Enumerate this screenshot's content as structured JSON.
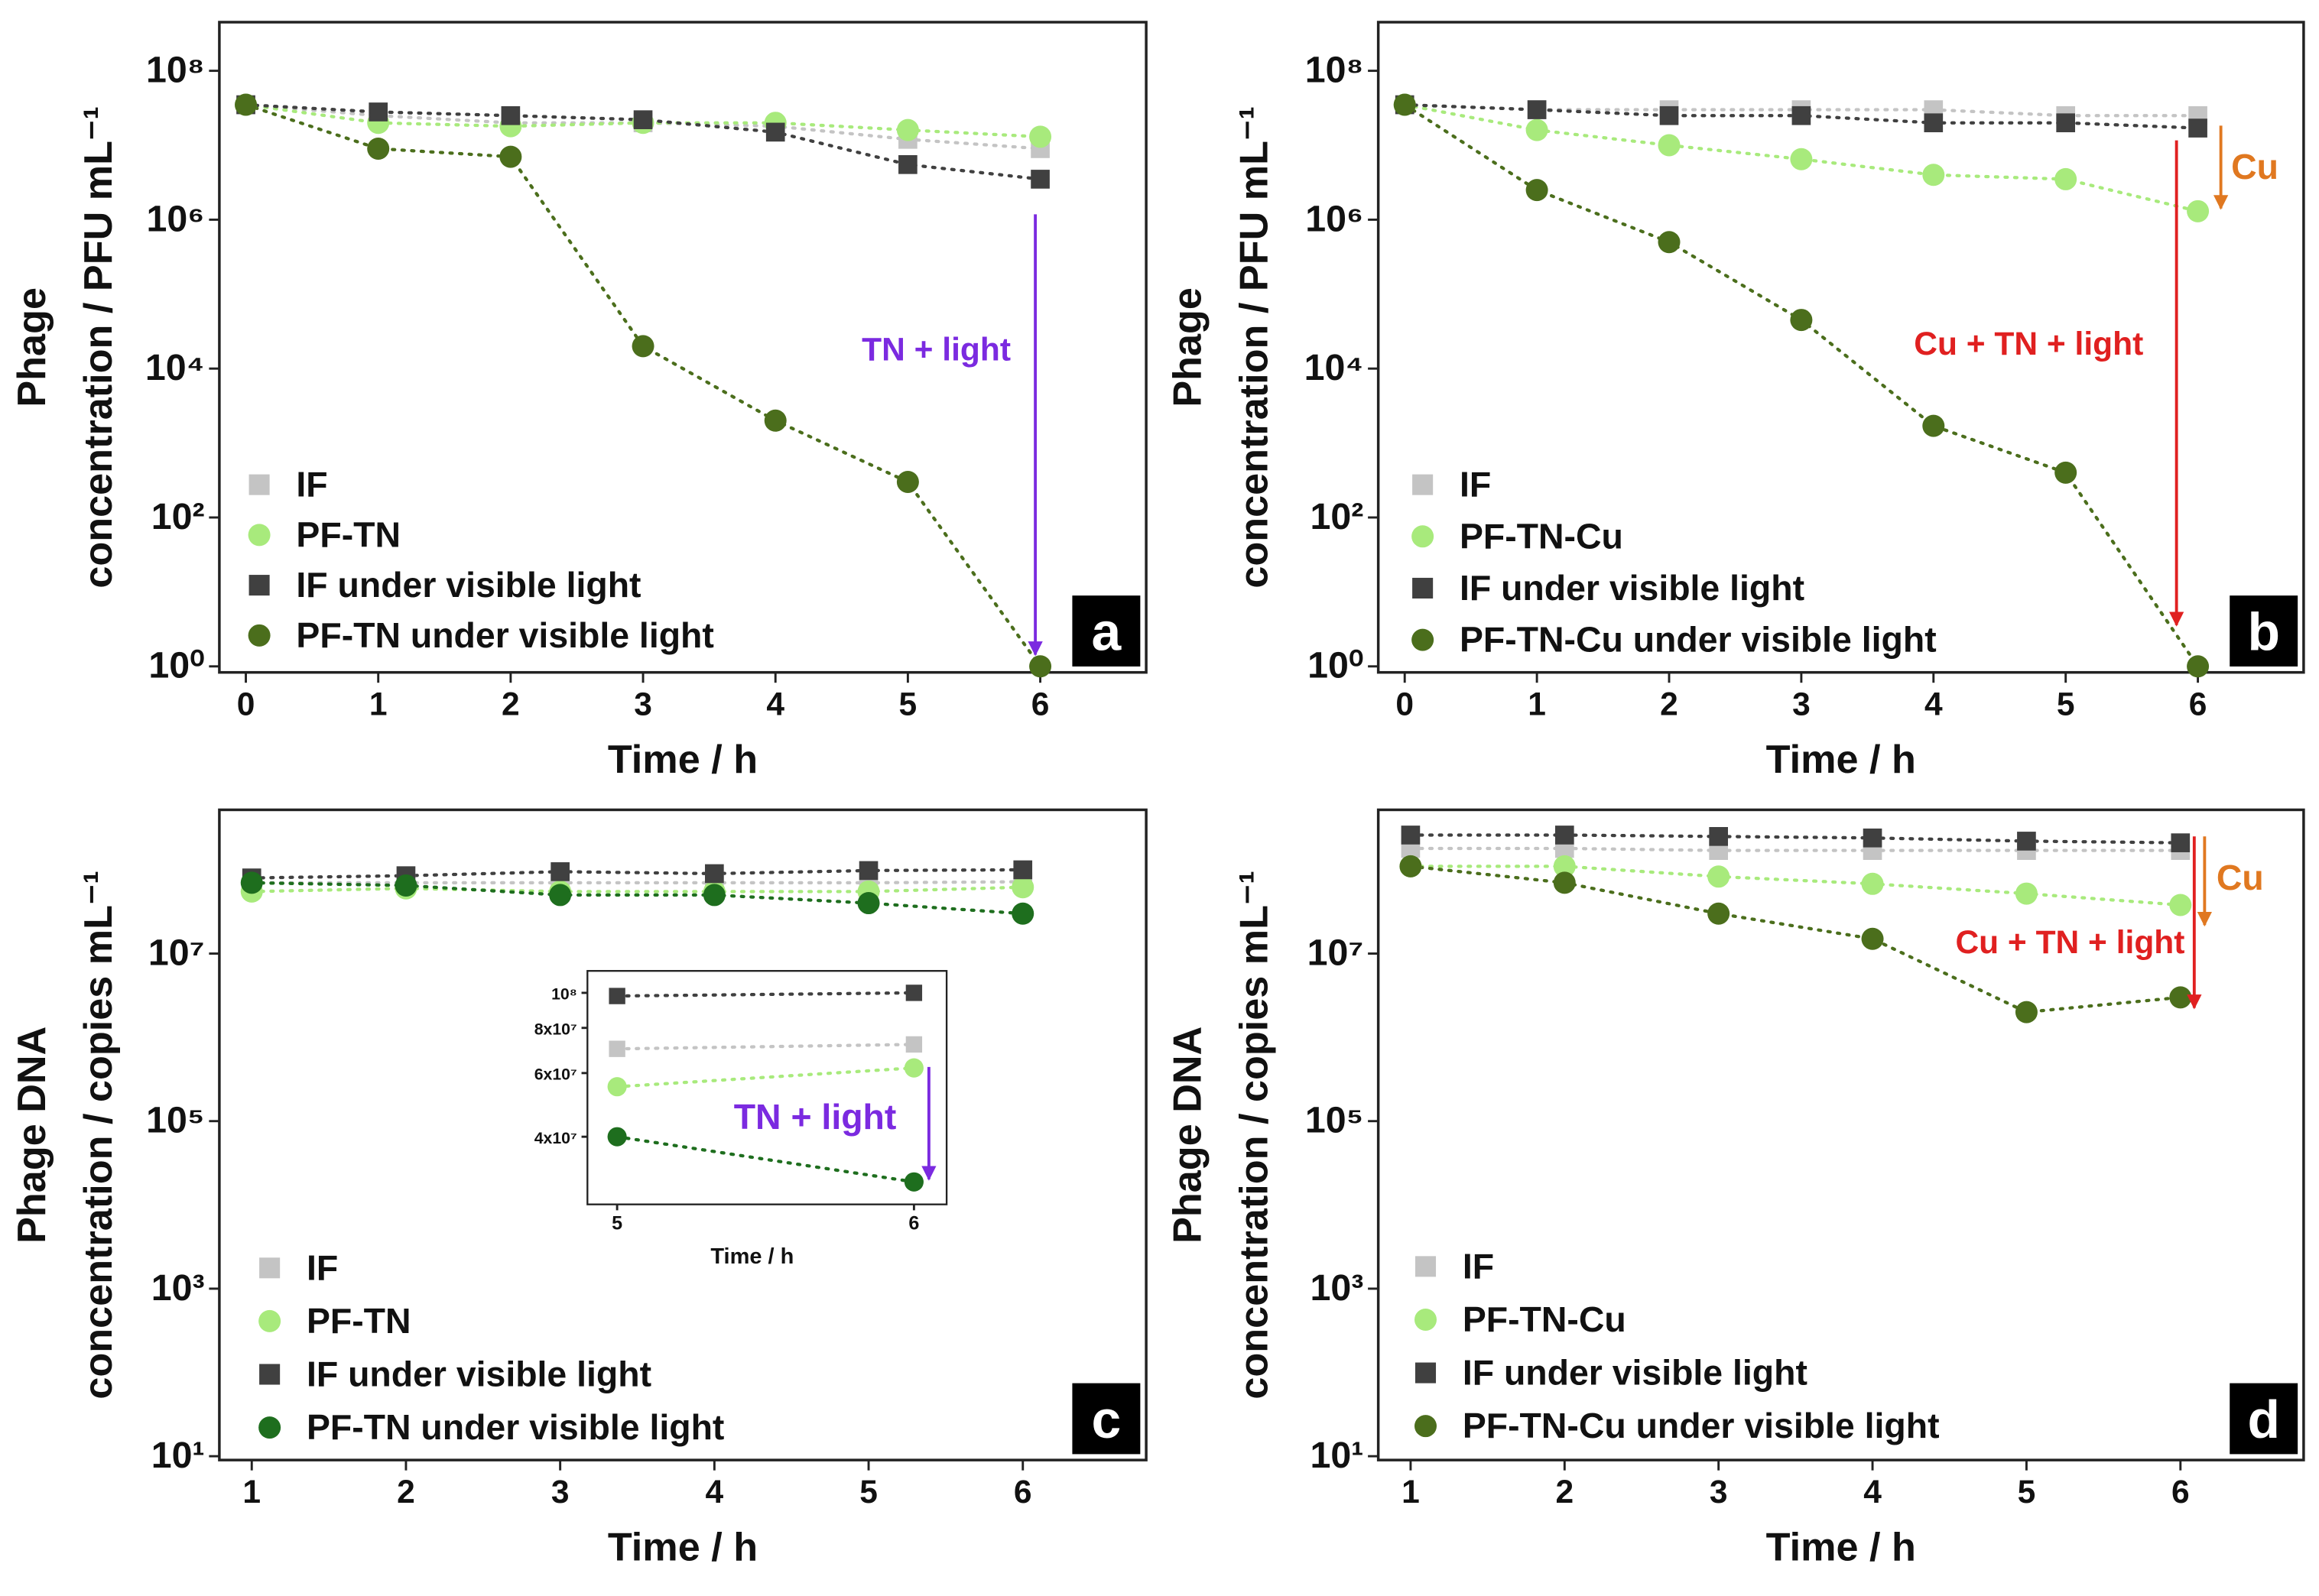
{
  "chart_data": [
    {
      "type": "line",
      "panel_label": "a",
      "xlabel": "Time / h",
      "ylabel": [
        "Phage",
        "concentration / PFU mL⁻¹"
      ],
      "yscale": "log",
      "x": [
        0,
        1,
        2,
        3,
        4,
        5,
        6
      ],
      "xlim": [
        -0.2,
        6.8
      ],
      "xticks": [
        0,
        1,
        2,
        3,
        4,
        5,
        6
      ],
      "ylim": [
        0.83,
        450000000
      ],
      "yticks": [
        {
          "value": 1,
          "label": "10⁰"
        },
        {
          "value": 100,
          "label": "10²"
        },
        {
          "value": 10000,
          "label": "10⁴"
        },
        {
          "value": 1000000,
          "label": "10⁶"
        },
        {
          "value": 100000000,
          "label": "10⁸"
        }
      ],
      "series": [
        {
          "name": "IF",
          "color": "#c4c4c4",
          "marker": "square",
          "values": [
            35000000,
            25000000,
            20000000,
            20000000,
            18000000,
            12000000,
            9000000
          ]
        },
        {
          "name": "PF-TN",
          "color": "#a8ea7c",
          "marker": "circle",
          "values": [
            35000000,
            20000000,
            18000000,
            20000000,
            20000000,
            16000000,
            13000000
          ]
        },
        {
          "name": "IF under visible light",
          "color": "#404040",
          "marker": "square",
          "values": [
            35000000,
            28000000,
            25000000,
            22000000,
            15000000,
            5500000,
            3500000
          ]
        },
        {
          "name": "PF-TN under visible light",
          "color": "#4b6e1c",
          "marker": "circle",
          "values": [
            35000000,
            9000000,
            7000000,
            20000,
            2000,
            300,
            1
          ]
        }
      ],
      "annotations": [
        {
          "text": "TN + light",
          "color": "#7b2ae0"
        }
      ]
    },
    {
      "type": "line",
      "panel_label": "b",
      "xlabel": "Time / h",
      "ylabel": [
        "Phage",
        "concentration / PFU mL⁻¹"
      ],
      "yscale": "log",
      "x": [
        0,
        1,
        2,
        3,
        4,
        5,
        6
      ],
      "xlim": [
        -0.2,
        6.8
      ],
      "xticks": [
        0,
        1,
        2,
        3,
        4,
        5,
        6
      ],
      "ylim": [
        0.83,
        450000000
      ],
      "yticks": [
        {
          "value": 1,
          "label": "10⁰"
        },
        {
          "value": 100,
          "label": "10²"
        },
        {
          "value": 10000,
          "label": "10⁴"
        },
        {
          "value": 1000000,
          "label": "10⁶"
        },
        {
          "value": 100000000,
          "label": "10⁸"
        }
      ],
      "series": [
        {
          "name": "IF",
          "color": "#c4c4c4",
          "marker": "square",
          "values": [
            35000000,
            30000000,
            30000000,
            30000000,
            30000000,
            25000000,
            25000000
          ]
        },
        {
          "name": "PF-TN-Cu",
          "color": "#a8ea7c",
          "marker": "circle",
          "values": [
            35000000,
            16000000,
            10000000,
            6500000,
            4000000,
            3500000,
            1300000
          ]
        },
        {
          "name": "IF under visible light",
          "color": "#404040",
          "marker": "square",
          "values": [
            35000000,
            30000000,
            25000000,
            25000000,
            20000000,
            20000000,
            17000000
          ]
        },
        {
          "name": "PF-TN-Cu under visible light",
          "color": "#4b6e1c",
          "marker": "circle",
          "values": [
            35000000,
            2500000,
            500000,
            45000,
            1700,
            400,
            1
          ]
        }
      ],
      "annotations": [
        {
          "text": "Cu",
          "color": "#e07820"
        },
        {
          "text": "Cu + TN + light",
          "color": "#e02020"
        }
      ]
    },
    {
      "type": "line",
      "panel_label": "c",
      "xlabel": "Time / h",
      "ylabel": [
        "Phage DNA",
        "concentration / copies mL⁻¹"
      ],
      "yscale": "log",
      "x": [
        1,
        2,
        3,
        4,
        5,
        6
      ],
      "xlim": [
        0.79,
        6.8
      ],
      "xticks": [
        1,
        2,
        3,
        4,
        5,
        6
      ],
      "ylim": [
        9,
        520000000
      ],
      "yticks": [
        {
          "value": 10,
          "label": "10¹"
        },
        {
          "value": 1000,
          "label": "10³"
        },
        {
          "value": 100000,
          "label": "10⁵"
        },
        {
          "value": 10000000,
          "label": "10⁷"
        }
      ],
      "series": [
        {
          "name": "IF",
          "color": "#c4c4c4",
          "marker": "square",
          "values": [
            70000000,
            70000000,
            70000000,
            70000000,
            70000000,
            72000000
          ]
        },
        {
          "name": "PF-TN",
          "color": "#a8ea7c",
          "marker": "circle",
          "values": [
            55000000,
            60000000,
            55000000,
            55000000,
            55000000,
            62000000
          ]
        },
        {
          "name": "IF under visible light",
          "color": "#404040",
          "marker": "square",
          "values": [
            80000000,
            85000000,
            95000000,
            90000000,
            98000000,
            100000000
          ]
        },
        {
          "name": "PF-TN under visible light",
          "color": "#1e6e1e",
          "marker": "circle",
          "values": [
            70000000,
            65000000,
            50000000,
            50000000,
            40000000,
            30000000
          ]
        }
      ],
      "annotations": []
    },
    {
      "type": "line",
      "panel_label": "d",
      "xlabel": "Time / h",
      "ylabel": [
        "Phage DNA",
        "concentration / copies mL⁻¹"
      ],
      "yscale": "log",
      "x": [
        1,
        2,
        3,
        4,
        5,
        6
      ],
      "xlim": [
        0.79,
        6.8
      ],
      "xticks": [
        1,
        2,
        3,
        4,
        5,
        6
      ],
      "ylim": [
        9,
        520000000
      ],
      "yticks": [
        {
          "value": 10,
          "label": "10¹"
        },
        {
          "value": 1000,
          "label": "10³"
        },
        {
          "value": 100000,
          "label": "10⁵"
        },
        {
          "value": 10000000,
          "label": "10⁷"
        }
      ],
      "series": [
        {
          "name": "IF",
          "color": "#c4c4c4",
          "marker": "square",
          "values": [
            180000000,
            180000000,
            170000000,
            170000000,
            170000000,
            170000000
          ]
        },
        {
          "name": "PF-TN-Cu",
          "color": "#a8ea7c",
          "marker": "circle",
          "values": [
            110000000,
            110000000,
            83000000,
            68000000,
            52000000,
            38000000
          ]
        },
        {
          "name": "IF under visible light",
          "color": "#404040",
          "marker": "square",
          "values": [
            260000000,
            260000000,
            250000000,
            240000000,
            220000000,
            210000000
          ]
        },
        {
          "name": "PF-TN-Cu under visible light",
          "color": "#4b6e1c",
          "marker": "circle",
          "values": [
            110000000,
            70000000,
            30000000,
            15000000,
            2000000,
            3000000
          ]
        }
      ],
      "annotations": [
        {
          "text": "Cu",
          "color": "#e07820"
        },
        {
          "text": "Cu + TN + light",
          "color": "#e02020"
        }
      ]
    },
    {
      "type": "line",
      "xlabel": "Time / h",
      "yscale": "log",
      "x": [
        5,
        6
      ],
      "xlim": [
        4.9,
        6.11
      ],
      "xticks": [
        5,
        6
      ],
      "ylim": [
        26000000,
        115000000
      ],
      "yticks": [
        {
          "value": 40000000,
          "label": "4x10⁷"
        },
        {
          "value": 60000000,
          "label": "6x10⁷"
        },
        {
          "value": 80000000,
          "label": "8x10⁷"
        },
        {
          "value": 100000000,
          "label": "10⁸"
        }
      ],
      "series": [
        {
          "color": "#c4c4c4",
          "marker": "square",
          "values": [
            70000000,
            72000000
          ]
        },
        {
          "color": "#a8ea7c",
          "marker": "circle",
          "values": [
            55000000,
            62000000
          ]
        },
        {
          "color": "#404040",
          "marker": "square",
          "values": [
            98000000,
            100000000
          ]
        },
        {
          "color": "#1e6e1e",
          "marker": "circle",
          "values": [
            40000000,
            30000000
          ]
        }
      ],
      "annotations": [
        {
          "text": "TN + light",
          "color": "#7b2ae0"
        }
      ]
    }
  ]
}
